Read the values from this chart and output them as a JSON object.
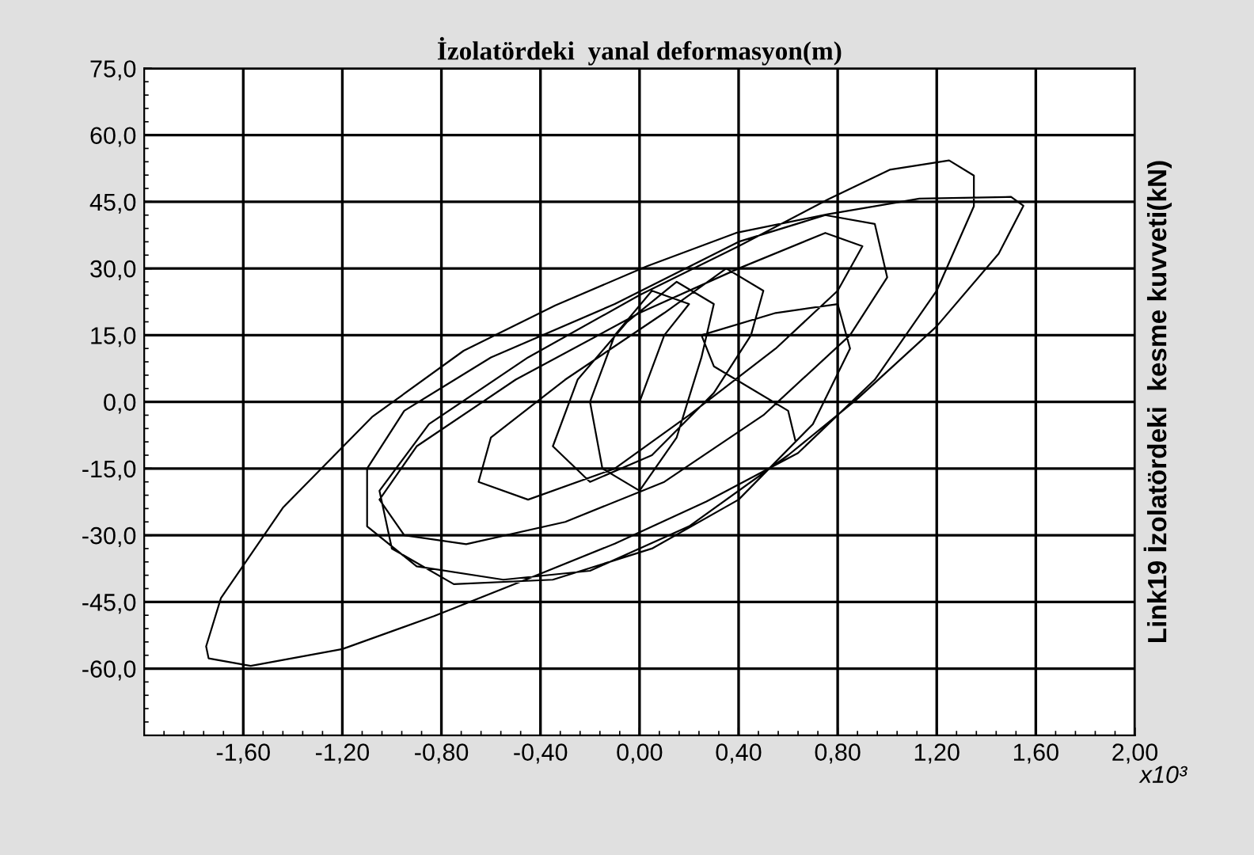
{
  "chart_data": {
    "type": "line",
    "xlabel": "İzolatördeki  yanal deformasyon(m)",
    "ylabel": "Link19 İzolatördeki  kesme kuvveti(kN)",
    "annotations": [
      "x10³"
    ],
    "xlim": [
      -2.0,
      2.0
    ],
    "xticks": [
      {
        "value": -1.6,
        "label": "-1,60"
      },
      {
        "value": -1.2,
        "label": "-1,20"
      },
      {
        "value": -0.8,
        "label": "-0,80"
      },
      {
        "value": -0.4,
        "label": "-0,40"
      },
      {
        "value": 0,
        "label": "0,00"
      },
      {
        "value": 0.4,
        "label": "0,40"
      },
      {
        "value": 0.8,
        "label": "0,80"
      },
      {
        "value": 1.2,
        "label": "1,20"
      },
      {
        "value": 1.6,
        "label": "1,60"
      },
      {
        "value": 2.0,
        "label": "2,00"
      }
    ],
    "ylim": [
      -75,
      75
    ],
    "yticks": [
      {
        "value": 75,
        "label": "75,0"
      },
      {
        "value": 60,
        "label": "60,0"
      },
      {
        "value": 45,
        "label": "45,0"
      },
      {
        "value": 30,
        "label": "30,0"
      },
      {
        "value": 15,
        "label": "15,0"
      },
      {
        "value": 0,
        "label": "0,0"
      },
      {
        "value": -15,
        "label": "-15,0"
      },
      {
        "value": -30,
        "label": "-30,0"
      },
      {
        "value": -45,
        "label": "-45,0"
      },
      {
        "value": -60,
        "label": "-60,0"
      }
    ],
    "grid": true,
    "marker": "none",
    "line_style": "solid",
    "series": [
      {
        "color": "#000000",
        "x": [
          0,
          0.1,
          0.2,
          0.05,
          -0.1,
          -0.2,
          -0.15,
          0.0,
          0.15,
          0.25,
          0.3,
          0.15,
          -0.05,
          -0.25,
          -0.35,
          -0.2,
          0.05,
          0.3,
          0.45,
          0.5,
          0.35,
          0.1,
          -0.3,
          -0.6,
          -0.65,
          -0.45,
          -0.1,
          0.2,
          0.55,
          0.8,
          0.9,
          0.75,
          0.4,
          0,
          -0.5,
          -0.9,
          -1.05,
          -0.95,
          -0.7,
          -0.3,
          0.1,
          0.5,
          0.85,
          1.0,
          0.95,
          0.75,
          0.4,
          -0.1,
          -0.6,
          -0.95,
          -1.1,
          -1.1,
          -0.9,
          -0.55,
          -0.2,
          0.2,
          0.6,
          0.88,
          1.2,
          1.45,
          1.55,
          1.5,
          1.13,
          0.76,
          0.39,
          0.03,
          -0.34,
          -0.71,
          -1.08,
          -1.44,
          -1.69,
          -1.75,
          -1.74,
          -1.57,
          -1.2,
          -0.83,
          -0.46,
          -0.1,
          0.27,
          0.64,
          0.95,
          1.2,
          1.35,
          1.35,
          1.25,
          1.01,
          0.76,
          0.4,
          0,
          -0.45,
          -0.85,
          -1.05,
          -1.0,
          -0.75,
          -0.35,
          0.05,
          0.4,
          0.7,
          0.85,
          0.8,
          0.55,
          0.25,
          0.3,
          0.6,
          0.63
        ],
        "values": [
          0,
          15,
          22,
          25,
          15,
          0,
          -15,
          -20,
          -8,
          10,
          22,
          27,
          18,
          5,
          -10,
          -18,
          -12,
          2,
          15,
          25,
          30,
          20,
          5,
          -8,
          -18,
          -22,
          -15,
          -3,
          12,
          25,
          35,
          38,
          30,
          20,
          5,
          -10,
          -22,
          -30,
          -32,
          -27,
          -18,
          -3,
          15,
          28,
          40,
          42,
          36,
          22,
          10,
          -2,
          -15,
          -28,
          -37,
          -40,
          -38,
          -28,
          -12,
          0.7,
          17,
          33.3,
          44.1,
          46.1,
          45.7,
          42.2,
          38,
          30.5,
          21.7,
          11.5,
          -3.4,
          -23.8,
          -44.1,
          -55,
          -57.7,
          -59.4,
          -55.6,
          -48.2,
          -40,
          -31.9,
          -22.4,
          -11.5,
          5,
          25,
          44,
          50.9,
          54.3,
          52.2,
          45.5,
          35,
          24,
          10,
          -5,
          -20,
          -33,
          -41,
          -40,
          -33,
          -22,
          -5,
          12,
          22,
          20,
          15,
          8,
          -2,
          -8.9
        ]
      }
    ]
  }
}
